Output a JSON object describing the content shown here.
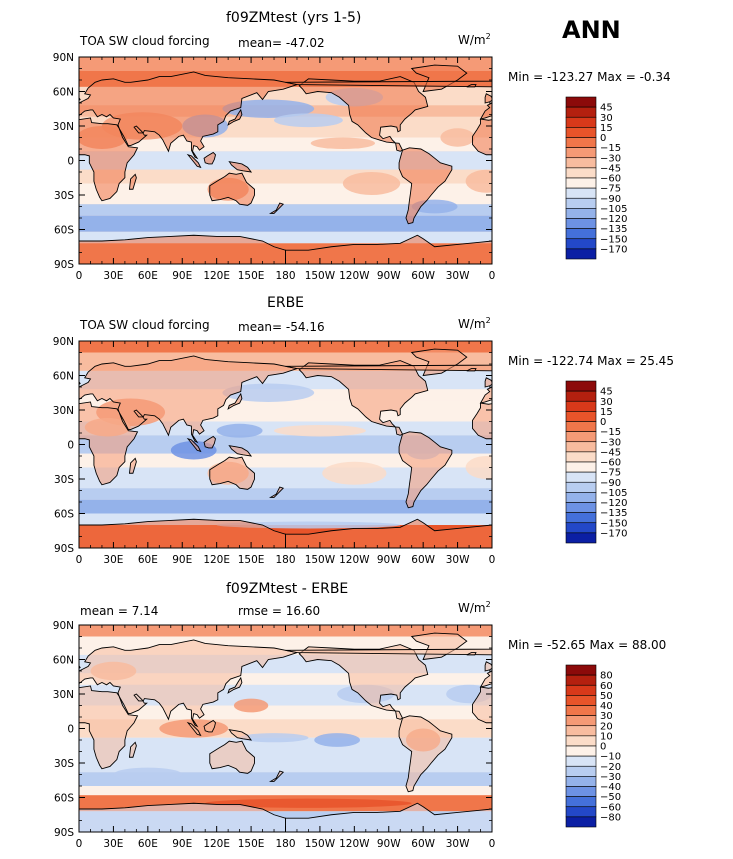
{
  "season": "ANN",
  "panels": [
    {
      "title": "f09ZMtest (yrs 1-5)",
      "left_label": "TOA SW cloud forcing",
      "center_label": "mean= -47.02",
      "unit_base": "W/m",
      "unit_sup": "2",
      "minmax": "Min = -123.27 Max =  -0.34",
      "levels": [
        "45",
        "30",
        "15",
        "0",
        "-15",
        "-30",
        "-45",
        "-60",
        "-75",
        "-90",
        "-105",
        "-120",
        "-135",
        "-150",
        "-170"
      ],
      "colors": [
        "#8c0a0a",
        "#b4200f",
        "#d8391a",
        "#e8542a",
        "#f0764a",
        "#f59a76",
        "#f8bc9f",
        "#fbdcc8",
        "#fdf1e8",
        "#d8e4f6",
        "#b8cdf0",
        "#94b2ea",
        "#6d92e4",
        "#4470da",
        "#2348c8",
        "#0b1fa4"
      ],
      "ocean_color": "#fbdcc8",
      "land_color": "#f0764a"
    },
    {
      "title": "ERBE",
      "left_label": "TOA SW cloud forcing",
      "center_label": "mean= -54.16",
      "unit_base": "W/m",
      "unit_sup": "2",
      "minmax": "Min = -122.74 Max =  25.45",
      "levels": [
        "45",
        "30",
        "15",
        "0",
        "-15",
        "-30",
        "-45",
        "-60",
        "-75",
        "-90",
        "-105",
        "-120",
        "-135",
        "-150",
        "-170"
      ],
      "colors": [
        "#8c0a0a",
        "#b4200f",
        "#d8391a",
        "#e8542a",
        "#f0764a",
        "#f59a76",
        "#f8bc9f",
        "#fbdcc8",
        "#fdf1e8",
        "#d8e4f6",
        "#b8cdf0",
        "#94b2ea",
        "#6d92e4",
        "#4470da",
        "#2348c8",
        "#0b1fa4"
      ],
      "ocean_color": "#fdf1e8",
      "land_color": "#f59a76"
    },
    {
      "title": "f09ZMtest - ERBE",
      "left_label": "mean =     7.14",
      "center_label": "rmse =   16.60",
      "unit_base": "W/m",
      "unit_sup": "2",
      "minmax": "Min = -52.65 Max =  88.00",
      "levels": [
        "80",
        "60",
        "50",
        "40",
        "30",
        "20",
        "10",
        "0",
        "-10",
        "-20",
        "-30",
        "-40",
        "-50",
        "-60",
        "-80"
      ],
      "colors": [
        "#8c0a0a",
        "#b4200f",
        "#d8391a",
        "#e8542a",
        "#f0764a",
        "#f59a76",
        "#f8bc9f",
        "#fbdcc8",
        "#fdf1e8",
        "#d8e4f6",
        "#b8cdf0",
        "#94b2ea",
        "#6d92e4",
        "#4470da",
        "#2348c8",
        "#0b1fa4"
      ],
      "ocean_color": "#fdf1e8",
      "land_color": "#f8bc9f"
    }
  ],
  "chart_data": [
    {
      "type": "heatmap",
      "title": "f09ZMtest (yrs 1-5)",
      "variable": "TOA SW cloud forcing",
      "units": "W/m2",
      "mean": -47.02,
      "min": -123.27,
      "max": -0.34,
      "contour_levels": [
        45,
        30,
        15,
        0,
        -15,
        -30,
        -45,
        -60,
        -75,
        -90,
        -105,
        -120,
        -135,
        -150,
        -170
      ],
      "xlabels": [
        "0",
        "30E",
        "60E",
        "90E",
        "120E",
        "150E",
        "180",
        "150W",
        "120W",
        "90W",
        "60W",
        "30W",
        "0"
      ],
      "ylabels": [
        "90N",
        "60N",
        "30N",
        "0",
        "30S",
        "60S",
        "90S"
      ],
      "xlim": [
        0,
        360
      ],
      "ylim": [
        -90,
        90
      ]
    },
    {
      "type": "heatmap",
      "title": "ERBE",
      "variable": "TOA SW cloud forcing",
      "units": "W/m2",
      "mean": -54.16,
      "min": -122.74,
      "max": 25.45,
      "contour_levels": [
        45,
        30,
        15,
        0,
        -15,
        -30,
        -45,
        -60,
        -75,
        -90,
        -105,
        -120,
        -135,
        -150,
        -170
      ],
      "xlabels": [
        "0",
        "30E",
        "60E",
        "90E",
        "120E",
        "150E",
        "180",
        "150W",
        "120W",
        "90W",
        "60W",
        "30W",
        "0"
      ],
      "ylabels": [
        "90N",
        "60N",
        "30N",
        "0",
        "30S",
        "60S",
        "90S"
      ],
      "xlim": [
        0,
        360
      ],
      "ylim": [
        -90,
        90
      ]
    },
    {
      "type": "heatmap",
      "title": "f09ZMtest - ERBE",
      "units": "W/m2",
      "mean": 7.14,
      "rmse": 16.6,
      "min": -52.65,
      "max": 88.0,
      "contour_levels": [
        80,
        60,
        50,
        40,
        30,
        20,
        10,
        0,
        -10,
        -20,
        -30,
        -40,
        -50,
        -60,
        -80
      ],
      "xlabels": [
        "0",
        "30E",
        "60E",
        "90E",
        "120E",
        "150E",
        "180",
        "150W",
        "120W",
        "90W",
        "60W",
        "30W",
        "0"
      ],
      "ylabels": [
        "90N",
        "60N",
        "30N",
        "0",
        "30S",
        "60S",
        "90S"
      ],
      "xlim": [
        0,
        360
      ],
      "ylim": [
        -90,
        90
      ]
    }
  ]
}
